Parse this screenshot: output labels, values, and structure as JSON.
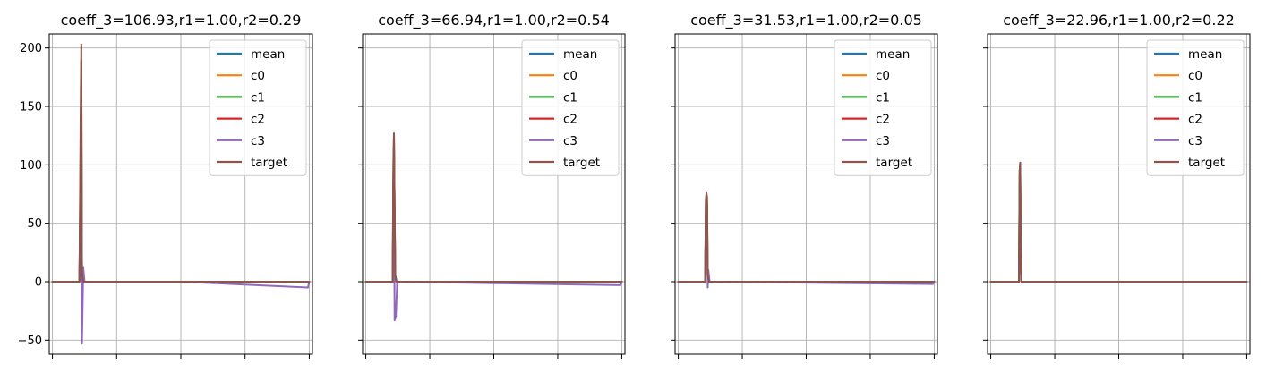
{
  "chart_data": [
    {
      "type": "line",
      "title": "coeff_3=106.93,r1=1.00,r2=0.29",
      "xlim": [
        -5,
        405
      ],
      "ylim": [
        -62,
        212
      ],
      "yticks": [
        -50,
        0,
        50,
        100,
        150,
        200
      ],
      "ytick_labels": [
        "−50",
        "0",
        "50",
        "100",
        "150",
        "200"
      ],
      "xticks": [
        0,
        100,
        200,
        300,
        400
      ],
      "grid": true,
      "legend": {
        "location": "upper-right",
        "entries": [
          "mean",
          "c0",
          "c1",
          "c2",
          "c3",
          "target"
        ]
      },
      "series": [
        {
          "name": "mean",
          "x": [
            0,
            42,
            44,
            45,
            46,
            48,
            200,
            400
          ],
          "y": [
            0,
            0,
            90,
            140,
            10,
            0,
            0,
            0
          ]
        },
        {
          "name": "c0",
          "x": [
            0,
            42,
            44,
            45,
            46,
            48,
            200,
            400
          ],
          "y": [
            0,
            0,
            85,
            130,
            8,
            0,
            0,
            0
          ]
        },
        {
          "name": "c1",
          "x": [
            0,
            42,
            44,
            45,
            46,
            48,
            200,
            400
          ],
          "y": [
            0,
            0,
            95,
            60,
            12,
            0,
            0,
            0
          ]
        },
        {
          "name": "c2",
          "x": [
            0,
            42,
            44,
            45,
            46,
            48,
            200,
            400
          ],
          "y": [
            0,
            0,
            120,
            190,
            10,
            0,
            0,
            0
          ]
        },
        {
          "name": "c3",
          "x": [
            0,
            42,
            44,
            45,
            46,
            48,
            50,
            200,
            398,
            400
          ],
          "y": [
            0,
            0,
            70,
            150,
            -53,
            12,
            0,
            0,
            -5,
            0
          ]
        },
        {
          "name": "target",
          "x": [
            0,
            42,
            44,
            45,
            46,
            48,
            200,
            400
          ],
          "y": [
            0,
            0,
            150,
            203,
            8,
            0,
            0,
            0
          ]
        }
      ]
    },
    {
      "type": "line",
      "title": "coeff_3=66.94,r1=1.00,r2=0.54",
      "xlim": [
        -5,
        405
      ],
      "ylim": [
        -62,
        212
      ],
      "yticks": [
        -50,
        0,
        50,
        100,
        150,
        200
      ],
      "xticks": [
        0,
        100,
        200,
        300,
        400
      ],
      "grid": true,
      "legend": {
        "location": "upper-right",
        "entries": [
          "mean",
          "c0",
          "c1",
          "c2",
          "c3",
          "target"
        ]
      },
      "series": [
        {
          "name": "mean",
          "x": [
            0,
            42,
            43,
            44,
            46,
            48,
            400
          ],
          "y": [
            0,
            0,
            80,
            120,
            5,
            0,
            0
          ]
        },
        {
          "name": "c0",
          "x": [
            0,
            42,
            43,
            44,
            46,
            48,
            400
          ],
          "y": [
            0,
            0,
            75,
            115,
            4,
            0,
            0
          ]
        },
        {
          "name": "c1",
          "x": [
            0,
            42,
            43,
            44,
            46,
            48,
            400
          ],
          "y": [
            0,
            0,
            60,
            30,
            6,
            0,
            0
          ]
        },
        {
          "name": "c2",
          "x": [
            0,
            42,
            43,
            44,
            46,
            48,
            400
          ],
          "y": [
            0,
            0,
            90,
            125,
            5,
            0,
            0
          ]
        },
        {
          "name": "c3",
          "x": [
            0,
            42,
            43,
            44,
            45,
            47,
            49,
            398,
            400
          ],
          "y": [
            0,
            0,
            60,
            110,
            -33,
            -30,
            0,
            -3,
            0
          ]
        },
        {
          "name": "target",
          "x": [
            0,
            42,
            43,
            44,
            46,
            48,
            400
          ],
          "y": [
            0,
            0,
            100,
            127,
            5,
            0,
            0
          ]
        }
      ]
    },
    {
      "type": "line",
      "title": "coeff_3=31.53,r1=1.00,r2=0.05",
      "xlim": [
        -5,
        405
      ],
      "ylim": [
        -62,
        212
      ],
      "yticks": [
        -50,
        0,
        50,
        100,
        150,
        200
      ],
      "xticks": [
        0,
        100,
        200,
        300,
        400
      ],
      "grid": true,
      "legend": {
        "location": "upper-right",
        "entries": [
          "mean",
          "c0",
          "c1",
          "c2",
          "c3",
          "target"
        ]
      },
      "series": [
        {
          "name": "mean",
          "x": [
            0,
            42,
            43,
            44,
            45,
            46,
            48,
            400
          ],
          "y": [
            0,
            0,
            60,
            74,
            65,
            5,
            0,
            0
          ]
        },
        {
          "name": "c0",
          "x": [
            0,
            42,
            43,
            44,
            45,
            46,
            48,
            400
          ],
          "y": [
            0,
            0,
            55,
            70,
            60,
            4,
            0,
            0
          ]
        },
        {
          "name": "c1",
          "x": [
            0,
            42,
            43,
            44,
            45,
            46,
            48,
            400
          ],
          "y": [
            0,
            0,
            50,
            65,
            30,
            6,
            0,
            0
          ]
        },
        {
          "name": "c2",
          "x": [
            0,
            42,
            43,
            44,
            45,
            46,
            48,
            400
          ],
          "y": [
            0,
            0,
            65,
            75,
            68,
            5,
            0,
            0
          ]
        },
        {
          "name": "c3",
          "x": [
            0,
            42,
            43,
            44,
            45,
            46,
            47,
            49,
            398,
            400
          ],
          "y": [
            0,
            0,
            50,
            70,
            60,
            -5,
            10,
            0,
            -2,
            0
          ]
        },
        {
          "name": "target",
          "x": [
            0,
            42,
            43,
            44,
            45,
            46,
            48,
            400
          ],
          "y": [
            0,
            0,
            70,
            76,
            72,
            5,
            0,
            0
          ]
        }
      ]
    },
    {
      "type": "line",
      "title": "coeff_3=22.96,r1=1.00,r2=0.22",
      "xlim": [
        -5,
        405
      ],
      "ylim": [
        -62,
        212
      ],
      "yticks": [
        -50,
        0,
        50,
        100,
        150,
        200
      ],
      "xticks": [
        0,
        100,
        200,
        300,
        400
      ],
      "grid": true,
      "legend": {
        "location": "upper-right",
        "entries": [
          "mean",
          "c0",
          "c1",
          "c2",
          "c3",
          "target"
        ]
      },
      "series": [
        {
          "name": "mean",
          "x": [
            0,
            44,
            45,
            46,
            47,
            48,
            400
          ],
          "y": [
            0,
            0,
            80,
            100,
            12,
            0,
            0
          ]
        },
        {
          "name": "c0",
          "x": [
            0,
            44,
            45,
            46,
            47,
            48,
            400
          ],
          "y": [
            0,
            0,
            78,
            98,
            10,
            0,
            0
          ]
        },
        {
          "name": "c1",
          "x": [
            0,
            44,
            45,
            46,
            47,
            48,
            400
          ],
          "y": [
            0,
            0,
            60,
            40,
            14,
            0,
            0
          ]
        },
        {
          "name": "c2",
          "x": [
            0,
            44,
            45,
            46,
            47,
            48,
            400
          ],
          "y": [
            0,
            0,
            90,
            101,
            10,
            0,
            0
          ]
        },
        {
          "name": "c3",
          "x": [
            0,
            44,
            45,
            46,
            47,
            48,
            400
          ],
          "y": [
            0,
            0,
            55,
            90,
            14,
            0,
            0
          ]
        },
        {
          "name": "target",
          "x": [
            0,
            44,
            45,
            46,
            47,
            48,
            400
          ],
          "y": [
            0,
            0,
            95,
            102,
            10,
            0,
            0
          ]
        }
      ]
    }
  ],
  "colors": {
    "mean": "#1f77b4",
    "c0": "#ff7f0e",
    "c1": "#2ca02c",
    "c2": "#d62728",
    "c3": "#9467bd",
    "target": "#8c564b",
    "grid": "#b0b0b0",
    "axes": "#000000"
  }
}
